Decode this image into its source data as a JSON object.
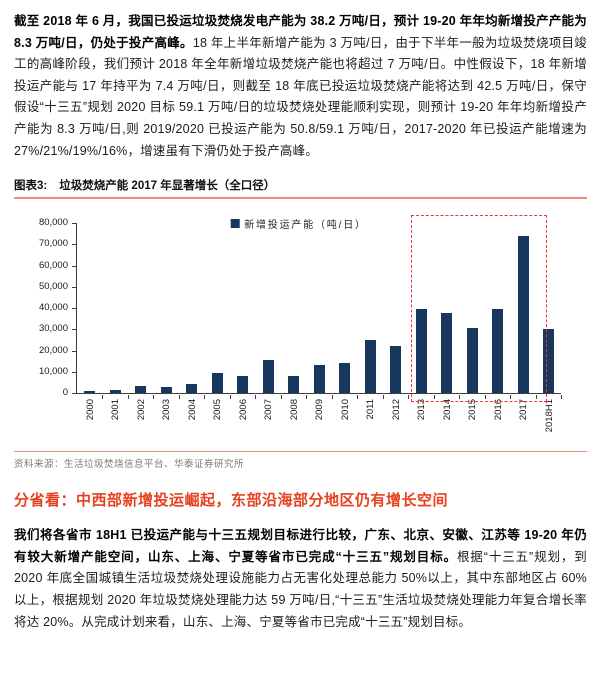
{
  "intro": {
    "bold": "截至 2018 年 6 月，我国已投运垃圾焚烧发电产能为 38.2 万吨/日，预计 19-20 年年均新增投产产能为 8.3 万吨/日，仍处于投产高峰。",
    "regular": "18 年上半年新增产能为 3 万吨/日，由于下半年一般为垃圾焚烧项目竣工的高峰阶段，我们预计 2018 年全年新增垃圾焚烧产能也将超过 7 万吨/日。中性假设下，18 年新增投运产能与 17 年持平为 7.4 万吨/日，则截至 18 年底已投运垃圾焚烧产能将达到 42.5 万吨/日，保守假设“十三五”规划 2020 目标 59.1 万吨/日的垃圾焚烧处理能顺利实现，则预计 19-20 年年均新增投产产能为 8.3 万吨/日,则 2019/2020 已投运产能为 50.8/59.1 万吨/日，2017-2020 年已投运产能增速为 27%/21%/19%/16%，增速虽有下滑仍处于投产高峰。"
  },
  "figure": {
    "label": "图表3:",
    "title": "垃圾焚烧产能 2017 年显著增长（全口径）",
    "source": "资料来源：生活垃圾焚烧信息平台、华泰证券研究所"
  },
  "section": {
    "heading": "分省看：中西部新增投运崛起，东部沿海部分地区仍有增长空间"
  },
  "body": {
    "bold": "我们将各省市 18H1 已投运产能与十三五规划目标进行比较，广东、北京、安徽、江苏等 19-20 年仍有较大新增产能空间，山东、上海、宁夏等省市已完成“十三五”规划目标。",
    "regular": "根据“十三五”规划，到 2020 年底全国城镇生活垃圾焚烧处理设施能力占无害化处理总能力 50%以上，其中东部地区占 60%以上，根据规划 2020 年垃圾焚烧处理能力达 59 万吨/日,“十三五”生活垃圾焚烧处理能力年复合增长率将达 20%。从完成计划来看，山东、上海、宁夏等省市已完成“十三五”规划目标。"
  },
  "colors": {
    "bar_navy": "#17375e",
    "highlight_red": "#f53333",
    "rule_salmon": "#f08a7d",
    "heading_red": "#e8401f",
    "source_grey": "#7f7a74",
    "axis": "#404040"
  },
  "chart_data": {
    "type": "bar",
    "title": "垃圾焚烧产能 2017 年显著增长（全口径）",
    "legend_label": "新增投运产能（吨/日）",
    "legend_position": "top-center",
    "grid": false,
    "categories": [
      "2000",
      "2001",
      "2002",
      "2003",
      "2004",
      "2005",
      "2006",
      "2007",
      "2008",
      "2009",
      "2010",
      "2011",
      "2012",
      "2013",
      "2014",
      "2015",
      "2016",
      "2017",
      "2018H1"
    ],
    "values": [
      800,
      1500,
      3200,
      2800,
      4400,
      9700,
      7900,
      15400,
      7900,
      13400,
      14100,
      24800,
      22100,
      39600,
      37900,
      30800,
      39800,
      74000,
      30000
    ],
    "xlabel": "",
    "ylabel": "",
    "ylim": [
      0,
      80000
    ],
    "ytick_step": 10000,
    "highlight": {
      "categories": [
        "2013",
        "2014",
        "2015",
        "2016",
        "2017",
        "2018H1"
      ],
      "style": "red-dashed-box"
    }
  }
}
